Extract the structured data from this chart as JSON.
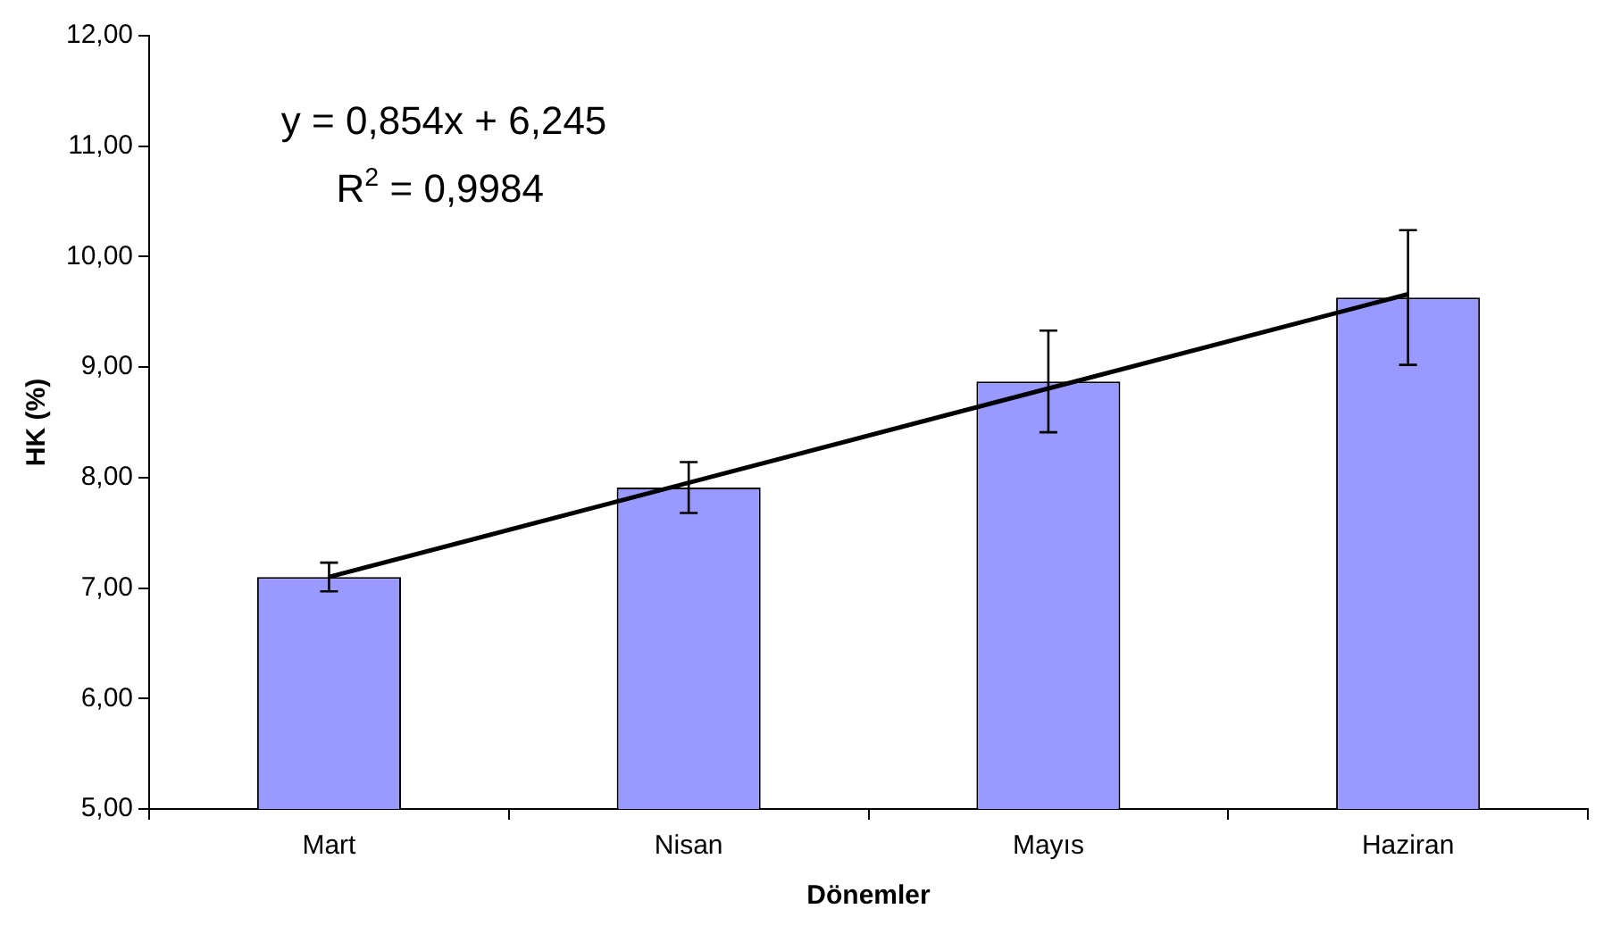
{
  "chart_data": {
    "type": "bar",
    "xlabel": "Dönemler",
    "ylabel": "HK (%)",
    "categories": [
      "Mart",
      "Nisan",
      "Mayıs",
      "Haziran"
    ],
    "series": [
      {
        "color": "#9999ff",
        "values": [
          7.1,
          7.91,
          8.87,
          9.63
        ],
        "errors": [
          0.13,
          0.23,
          0.46,
          0.61
        ]
      },
      {
        "type": "line",
        "color": "#000000",
        "x": [
          "Mart",
          "Haziran"
        ],
        "values": [
          7.1,
          9.66
        ]
      }
    ],
    "ylim": [
      5,
      12
    ],
    "yticks": [
      {
        "value": 5,
        "label": "5,00"
      },
      {
        "value": 6,
        "label": "6,00"
      },
      {
        "value": 7,
        "label": "7,00"
      },
      {
        "value": 8,
        "label": "8,00"
      },
      {
        "value": 9,
        "label": "9,00"
      },
      {
        "value": 10,
        "label": "10,00"
      },
      {
        "value": 11,
        "label": "11,00"
      },
      {
        "value": 12,
        "label": "12,00"
      }
    ],
    "annotations": [
      "y = 0,854x + 6,245",
      "R$^{2}$ = 0,9984"
    ],
    "grid": false,
    "legend": false
  }
}
